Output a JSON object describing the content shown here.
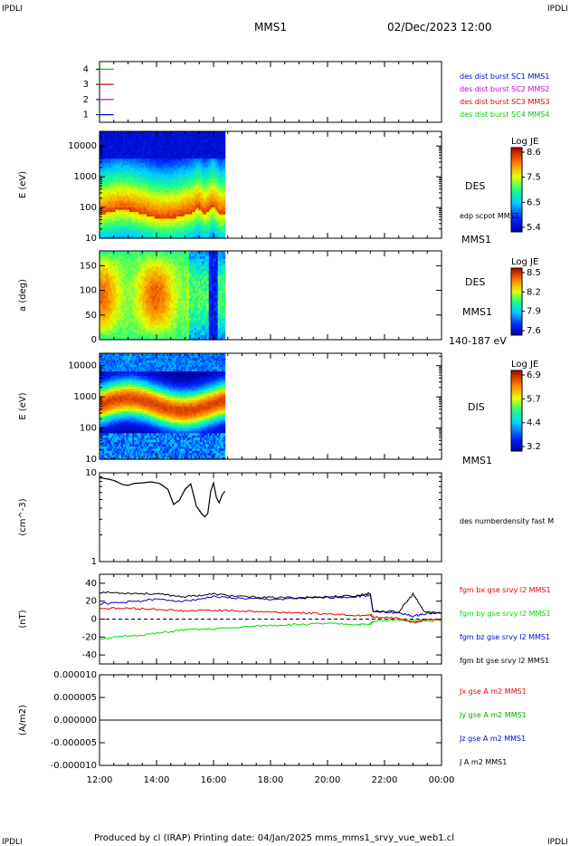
{
  "header": {
    "corner_label": "IPDLI",
    "spacecraft": "MMS1",
    "datetime": "02/Dec/2023 12:00"
  },
  "footer": {
    "text": "Produced by cl (IRAP)   Printing date: 04/Jan/2025   mms_mms1_srvy_vue_web1.cl"
  },
  "time_axis": {
    "ticks": [
      "12:00",
      "14:00",
      "16:00",
      "18:00",
      "20:00",
      "22:00",
      "00:00"
    ],
    "range_hours": [
      0,
      12
    ]
  },
  "chart_data": [
    {
      "type": "line",
      "id": "burst-availability",
      "ylim": [
        0.5,
        4.5
      ],
      "yticks": [
        "1",
        "2",
        "3",
        "4"
      ],
      "series": [
        {
          "name": "des dist burst SC1 MMS1",
          "color": "#0000cc",
          "y": 1,
          "t": [
            0.0,
            0.5
          ]
        },
        {
          "name": "des dist burst SC2 MMS2",
          "color": "#cc00cc",
          "y": 2,
          "t": [
            0.0,
            0.5
          ]
        },
        {
          "name": "des dist burst SC3 MMS3",
          "color": "#dd0000",
          "y": 3,
          "t": [
            0.0,
            0.5
          ]
        },
        {
          "name": "des dist burst SC4 MMS4",
          "color": "#00cc00",
          "y": 4,
          "t": [
            0.0,
            0.5
          ]
        }
      ]
    },
    {
      "type": "heatmap",
      "id": "des-energy-spectrogram",
      "ylabel": "E (eV)",
      "yscale": "log",
      "ylim": [
        10,
        30000
      ],
      "yticks": [
        "10",
        "100",
        "1000",
        "10000"
      ],
      "data_end_hours": 4.4,
      "side_labels": [
        "DES",
        "edp scpot MMS1",
        "MMS1"
      ],
      "colorbar": {
        "title": "Log JE",
        "ticks": [
          "8.6",
          "7.5",
          "6.5",
          "5.4"
        ]
      }
    },
    {
      "type": "heatmap",
      "id": "des-pitch-angle",
      "ylabel": "a (deg)",
      "ylim": [
        0,
        180
      ],
      "yticks": [
        "0",
        "50",
        "100",
        "150"
      ],
      "data_end_hours": 4.4,
      "side_labels": [
        "DES",
        "MMS1",
        "140-187 eV"
      ],
      "colorbar": {
        "title": "Log JE",
        "ticks": [
          "8.5",
          "8.2",
          "7.9",
          "7.6"
        ]
      }
    },
    {
      "type": "heatmap",
      "id": "dis-energy-spectrogram",
      "ylabel": "E (eV)",
      "yscale": "log",
      "ylim": [
        10,
        25000
      ],
      "yticks": [
        "10",
        "100",
        "1000",
        "10000"
      ],
      "data_end_hours": 4.4,
      "side_labels": [
        "DIS",
        "MMS1"
      ],
      "colorbar": {
        "title": "Log JE",
        "ticks": [
          "6.9",
          "5.7",
          "4.4",
          "3.2"
        ]
      }
    },
    {
      "type": "line",
      "id": "des-density",
      "ylabel": "(cm^-3)",
      "yscale": "log",
      "ylim": [
        1,
        10
      ],
      "yticks": [
        "1",
        "10"
      ],
      "series": [
        {
          "name": "des numberdensity fast M",
          "color": "#000000",
          "t": [
            0.0,
            0.3,
            0.5,
            0.8,
            1.0,
            1.2,
            1.5,
            1.8,
            2.1,
            2.4,
            2.6,
            2.8,
            3.0,
            3.2,
            3.4,
            3.6,
            3.7,
            3.8,
            3.9,
            4.0,
            4.1,
            4.2,
            4.3,
            4.4
          ],
          "values": [
            8.8,
            8.5,
            8.2,
            7.4,
            7.2,
            7.6,
            7.7,
            7.9,
            7.6,
            6.5,
            4.4,
            4.9,
            6.5,
            7.5,
            4.2,
            3.4,
            3.2,
            3.5,
            6.2,
            7.7,
            5.3,
            4.6,
            5.6,
            6.2
          ]
        }
      ]
    },
    {
      "type": "line",
      "id": "fgm-b",
      "ylabel": "(nT)",
      "ylim": [
        -50,
        50
      ],
      "yticks": [
        "-40",
        "-20",
        "0",
        "20",
        "40"
      ],
      "series": [
        {
          "name": "fgm bx gse srvy l2 MMS1",
          "color": "#ee0000",
          "t": [
            0,
            1,
            2,
            3,
            4,
            5,
            6,
            7,
            8,
            9,
            9.5,
            9.6,
            10.5,
            11.0,
            11.4,
            12
          ],
          "values": [
            12,
            12,
            11,
            9,
            10,
            9,
            8,
            7,
            6,
            4,
            5,
            2,
            1,
            -4,
            -1,
            0
          ]
        },
        {
          "name": "fgm by gse srvy l2 MMS1",
          "color": "#00dd00",
          "t": [
            0,
            1,
            2,
            3,
            4,
            5,
            6,
            7,
            8,
            9,
            9.5,
            9.6,
            10.5,
            11.0,
            11.4,
            12
          ],
          "values": [
            -22,
            -19,
            -16,
            -12,
            -11,
            -9,
            -7,
            -6,
            -5,
            -6,
            -6,
            -2,
            -1,
            -2,
            -2,
            -1
          ]
        },
        {
          "name": "fgm bz gse srvy l2 MMS1",
          "color": "#0000dd",
          "t": [
            0,
            1,
            2,
            3,
            4,
            5,
            6,
            7,
            8,
            9,
            9.5,
            9.6,
            10.5,
            11.0,
            11.4,
            12
          ],
          "values": [
            17,
            19,
            22,
            20,
            25,
            23,
            22,
            23,
            24,
            25,
            27,
            8,
            7,
            3,
            6,
            7
          ]
        },
        {
          "name": "fgm bt gse srvy l2 MMS1",
          "color": "#000000",
          "t": [
            0,
            1,
            2,
            3,
            4,
            5,
            6,
            7,
            8,
            9,
            9.5,
            9.6,
            10.5,
            11.0,
            11.4,
            12
          ],
          "values": [
            30,
            29,
            28,
            25,
            28,
            25,
            24,
            24,
            25,
            26,
            29,
            9,
            8,
            28,
            8,
            7
          ]
        }
      ]
    },
    {
      "type": "line",
      "id": "fpi-current",
      "ylabel": "(A/m2)",
      "ylim": [
        -1e-05,
        1e-05
      ],
      "yticks": [
        "-0.000010",
        "-0.000005",
        "0.000000",
        "0.000005",
        "0.000010"
      ],
      "series": [
        {
          "name": "Jx gse A m2 MMS1",
          "color": "#ee0000",
          "t": [
            0,
            12
          ],
          "values": [
            0,
            0
          ]
        },
        {
          "name": "Jy gse A m2 MMS1",
          "color": "#00aa00",
          "t": [
            0,
            12
          ],
          "values": [
            0,
            0
          ]
        },
        {
          "name": "Jz gse A m2 MMS1",
          "color": "#0000cc",
          "t": [
            0,
            12
          ],
          "values": [
            0,
            0
          ]
        },
        {
          "name": "J A m2 MMS1",
          "color": "#000000",
          "t": [
            0,
            12
          ],
          "values": [
            0,
            0
          ]
        }
      ]
    }
  ]
}
